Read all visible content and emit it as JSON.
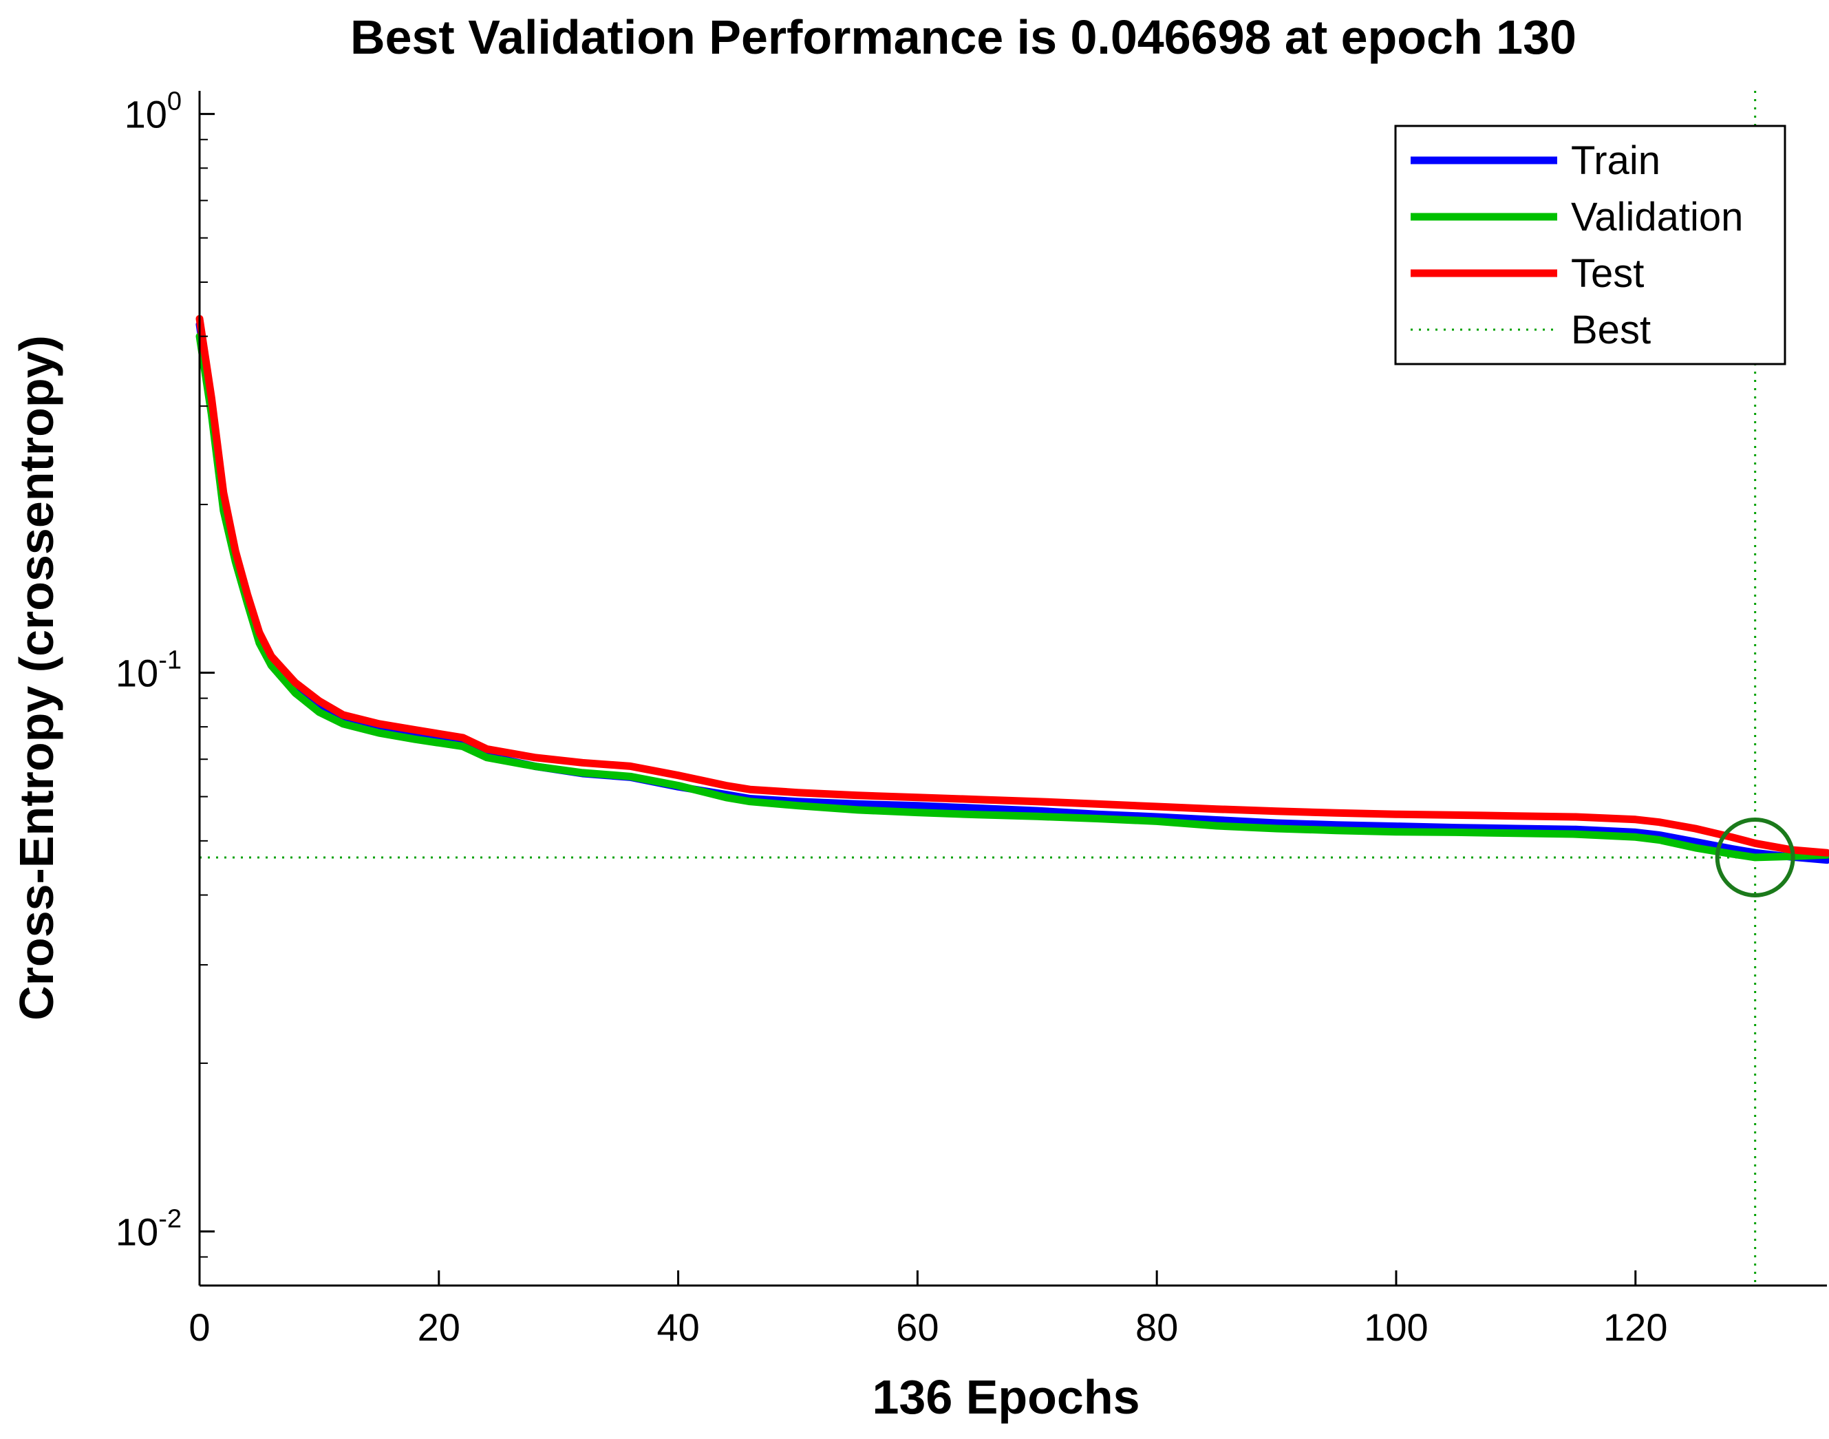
{
  "chart_data": {
    "type": "line",
    "title": "Best Validation Performance is 0.046698 at epoch 130",
    "xlabel": "136 Epochs",
    "ylabel": "Cross-Entropy  (crossentropy)",
    "x_scale": "linear",
    "y_scale": "log",
    "xlim": [
      0,
      136
    ],
    "ylim": [
      0.008,
      1.1
    ],
    "x_ticks": [
      {
        "value": 0,
        "label": "0"
      },
      {
        "value": 20,
        "label": "20"
      },
      {
        "value": 40,
        "label": "40"
      },
      {
        "value": 60,
        "label": "60"
      },
      {
        "value": 80,
        "label": "80"
      },
      {
        "value": 100,
        "label": "100"
      },
      {
        "value": 120,
        "label": "120"
      }
    ],
    "y_ticks": [
      {
        "value": 1,
        "base": "10",
        "exp": "0"
      },
      {
        "value": 0.1,
        "base": "10",
        "exp": "-1"
      },
      {
        "value": 0.01,
        "base": "10",
        "exp": "-2"
      }
    ],
    "x": [
      0,
      1,
      2,
      3,
      4,
      5,
      6,
      8,
      10,
      12,
      15,
      18,
      22,
      24,
      28,
      32,
      36,
      40,
      44,
      46,
      50,
      55,
      60,
      65,
      70,
      75,
      80,
      85,
      90,
      95,
      100,
      105,
      110,
      115,
      120,
      122,
      125,
      128,
      130,
      133,
      136
    ],
    "series": [
      {
        "name": "Train",
        "color": "#0000ff",
        "values": [
          0.42,
          0.3,
          0.2,
          0.16,
          0.135,
          0.115,
          0.105,
          0.094,
          0.087,
          0.082,
          0.079,
          0.077,
          0.0745,
          0.071,
          0.068,
          0.066,
          0.065,
          0.0625,
          0.0605,
          0.0595,
          0.0588,
          0.0582,
          0.0578,
          0.0572,
          0.0566,
          0.0558,
          0.0552,
          0.0545,
          0.0538,
          0.0534,
          0.0531,
          0.0528,
          0.0526,
          0.0524,
          0.0518,
          0.0512,
          0.0498,
          0.0484,
          0.0476,
          0.0468,
          0.0462
        ]
      },
      {
        "name": "Validation",
        "color": "#00c000",
        "values": [
          0.4,
          0.29,
          0.195,
          0.158,
          0.133,
          0.113,
          0.103,
          0.092,
          0.085,
          0.081,
          0.078,
          0.076,
          0.0738,
          0.0705,
          0.068,
          0.0662,
          0.0652,
          0.0628,
          0.0598,
          0.0588,
          0.0578,
          0.0568,
          0.0562,
          0.0557,
          0.0553,
          0.0548,
          0.0542,
          0.0532,
          0.0526,
          0.0522,
          0.0519,
          0.0518,
          0.0516,
          0.0514,
          0.0508,
          0.0502,
          0.0486,
          0.0474,
          0.046698,
          0.0469,
          0.0472
        ]
      },
      {
        "name": "Test",
        "color": "#ff0000",
        "values": [
          0.43,
          0.31,
          0.21,
          0.165,
          0.138,
          0.118,
          0.107,
          0.096,
          0.089,
          0.084,
          0.081,
          0.079,
          0.0765,
          0.073,
          0.0705,
          0.069,
          0.068,
          0.0655,
          0.0628,
          0.0618,
          0.061,
          0.0603,
          0.0598,
          0.0593,
          0.0588,
          0.0582,
          0.0576,
          0.057,
          0.0565,
          0.0561,
          0.0558,
          0.0556,
          0.0554,
          0.0552,
          0.0546,
          0.054,
          0.0526,
          0.0508,
          0.0495,
          0.0482,
          0.0476
        ]
      }
    ],
    "best": {
      "name": "Best",
      "color": "#00a000",
      "epoch": 130,
      "value": 0.046698
    },
    "legend": {
      "position": "top-right",
      "entries": [
        "Train",
        "Validation",
        "Test",
        "Best"
      ]
    }
  }
}
